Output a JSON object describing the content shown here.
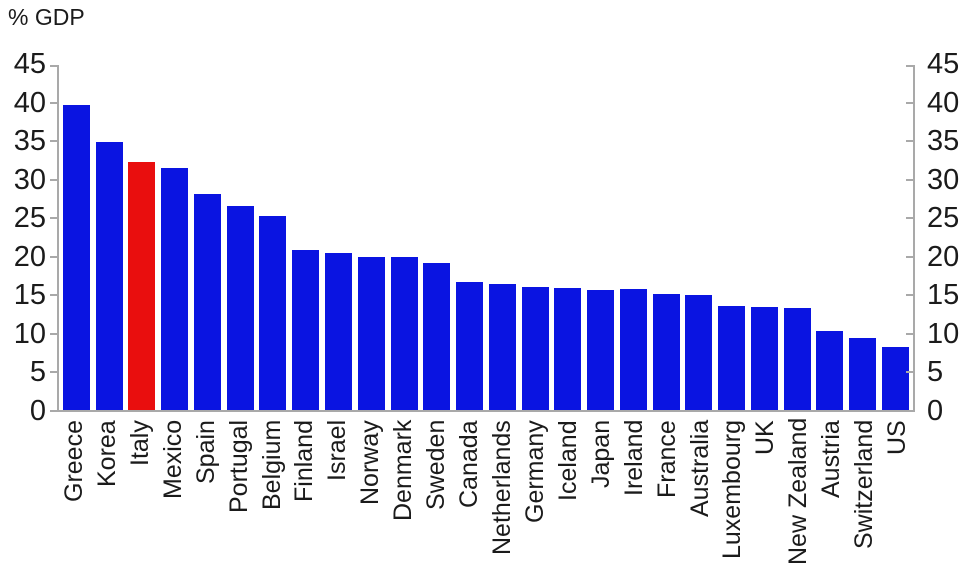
{
  "header": {
    "title": "% GDP"
  },
  "colors": {
    "axis_line": "#a9a9a9",
    "tick_text": "#1b1b1b",
    "label_text": "#1b1b1b",
    "background": "#ffffff"
  },
  "chart_data": {
    "type": "bar",
    "title": "% GDP",
    "xlabel": "",
    "ylabel": "% GDP",
    "ylim": [
      0,
      45
    ],
    "yticks": [
      45,
      40,
      35,
      30,
      25,
      20,
      15,
      10,
      5,
      0
    ],
    "dual_y_axis": true,
    "grid": false,
    "categories": [
      "Greece",
      "Korea",
      "Italy",
      "Mexico",
      "Spain",
      "Portugal",
      "Belgium",
      "Finland",
      "Israel",
      "Norway",
      "Denmark",
      "Sweden",
      "Canada",
      "Netherlands",
      "Germany",
      "Iceland",
      "Japan",
      "Ireland",
      "France",
      "Australia",
      "Luxembourg",
      "UK",
      "New Zealand",
      "Austria",
      "Switzerland",
      "US"
    ],
    "values": [
      39.5,
      34.7,
      32.1,
      31.4,
      28.0,
      26.4,
      25.2,
      20.7,
      20.4,
      19.9,
      19.8,
      19.0,
      16.6,
      16.4,
      16.0,
      15.8,
      15.6,
      15.7,
      15.0,
      14.9,
      13.5,
      13.3,
      13.2,
      10.2,
      9.4,
      8.2
    ],
    "highlighted_category": "Italy",
    "bar_color": "#0a14e1",
    "highlight_color": "#e90e0e"
  }
}
